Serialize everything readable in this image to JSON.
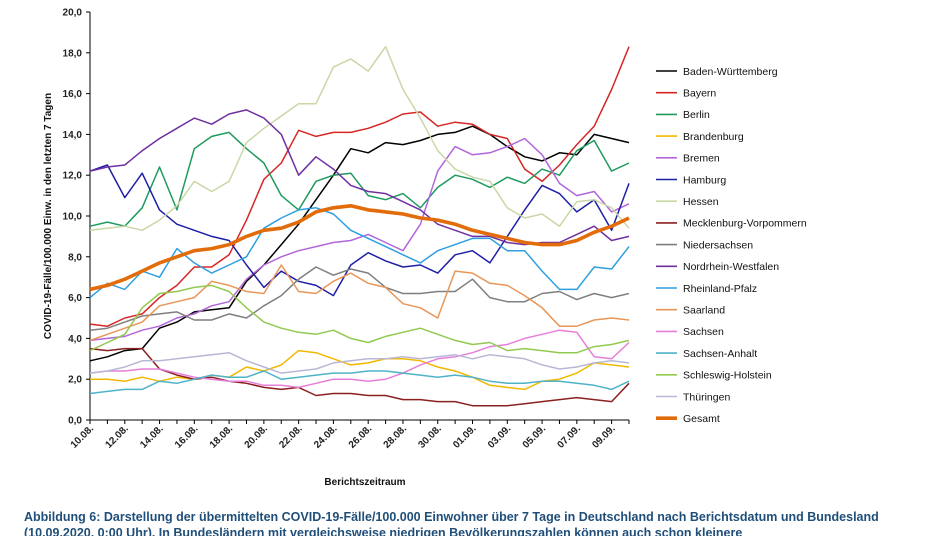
{
  "chart_data": {
    "type": "line",
    "title": "",
    "xlabel": "Berichtszeitraum",
    "ylabel": "COVID-19-Fälle/100.000 Einw. in den letzten 7 Tagen",
    "ylim": [
      0,
      20
    ],
    "y_ticks": [
      "0,0",
      "2,0",
      "4,0",
      "6,0",
      "8,0",
      "10,0",
      "12,0",
      "14,0",
      "16,0",
      "18,0",
      "20,0"
    ],
    "x_tick_labels": [
      "10.08.",
      "12.08.",
      "14.08.",
      "16.08.",
      "18.08.",
      "20.08.",
      "22.08.",
      "24.08.",
      "26.08.",
      "28.08.",
      "30.08.",
      "01.09.",
      "03.09.",
      "05.09.",
      "07.09.",
      "09.09."
    ],
    "x": [
      "10.08.",
      "11.08.",
      "12.08.",
      "13.08.",
      "14.08.",
      "15.08.",
      "16.08.",
      "17.08.",
      "18.08.",
      "19.08.",
      "20.08.",
      "21.08.",
      "22.08.",
      "23.08.",
      "24.08.",
      "25.08.",
      "26.08.",
      "27.08.",
      "28.08.",
      "29.08.",
      "30.08.",
      "31.08.",
      "01.09.",
      "02.09.",
      "03.09.",
      "04.09.",
      "05.09.",
      "06.09.",
      "07.09.",
      "08.09.",
      "09.09.",
      "10.09."
    ],
    "grid": false,
    "legend": "right",
    "series": [
      {
        "name": "Baden-Württemberg",
        "color": "#000000",
        "values": [
          2.9,
          3.1,
          3.4,
          3.5,
          4.5,
          4.8,
          5.3,
          5.4,
          5.5,
          6.8,
          7.6,
          8.6,
          9.6,
          10.8,
          12.0,
          13.3,
          13.1,
          13.6,
          13.5,
          13.7,
          14.0,
          14.1,
          14.4,
          14.0,
          13.4,
          12.9,
          12.7,
          13.1,
          13.0,
          14.0,
          13.8,
          13.6
        ]
      },
      {
        "name": "Bayern",
        "color": "#D72626",
        "values": [
          4.7,
          4.6,
          5.0,
          5.2,
          6.0,
          6.6,
          7.5,
          7.5,
          8.1,
          9.8,
          11.8,
          12.6,
          14.2,
          13.9,
          14.1,
          14.1,
          14.3,
          14.6,
          15.0,
          15.1,
          14.4,
          14.6,
          14.5,
          14.0,
          13.8,
          12.3,
          11.7,
          12.5,
          13.5,
          14.4,
          16.2,
          18.3
        ]
      },
      {
        "name": "Berlin",
        "color": "#1F9A5E",
        "values": [
          9.5,
          9.7,
          9.5,
          10.4,
          12.4,
          10.3,
          13.3,
          13.9,
          14.1,
          13.3,
          12.6,
          11.0,
          10.3,
          11.7,
          12.0,
          12.1,
          11.0,
          10.8,
          11.1,
          10.4,
          11.4,
          12.0,
          11.8,
          11.4,
          11.9,
          11.6,
          12.3,
          12.0,
          13.2,
          13.7,
          12.2,
          12.6
        ]
      },
      {
        "name": "Brandenburg",
        "color": "#F2B800",
        "values": [
          2.0,
          2.0,
          1.9,
          2.1,
          1.9,
          2.1,
          2.0,
          2.2,
          2.1,
          2.6,
          2.4,
          2.7,
          3.4,
          3.3,
          3.0,
          2.7,
          2.8,
          3.0,
          3.0,
          2.9,
          2.6,
          2.4,
          2.1,
          1.7,
          1.6,
          1.5,
          1.9,
          2.0,
          2.3,
          2.8,
          2.7,
          2.6
        ]
      },
      {
        "name": "Bremen",
        "color": "#B266D9",
        "values": [
          3.9,
          4.0,
          4.1,
          4.4,
          4.6,
          5.0,
          5.2,
          5.6,
          5.8,
          6.9,
          7.6,
          8.0,
          8.3,
          8.5,
          8.7,
          8.8,
          9.1,
          8.7,
          8.3,
          9.6,
          12.2,
          13.4,
          13.0,
          13.1,
          13.4,
          13.8,
          13.0,
          11.6,
          11.0,
          11.2,
          10.2,
          10.6
        ]
      },
      {
        "name": "Hamburg",
        "color": "#1F1FA6",
        "values": [
          12.2,
          12.5,
          10.9,
          12.1,
          10.3,
          9.6,
          9.3,
          9.0,
          8.8,
          7.6,
          6.5,
          7.3,
          6.8,
          6.6,
          6.1,
          7.6,
          8.2,
          7.8,
          7.5,
          7.6,
          7.2,
          8.1,
          8.3,
          7.7,
          9.0,
          10.3,
          11.5,
          11.1,
          10.2,
          10.8,
          9.3,
          11.6
        ]
      },
      {
        "name": "Hessen",
        "color": "#C9D8A6",
        "values": [
          9.3,
          9.4,
          9.5,
          9.3,
          9.8,
          10.5,
          11.7,
          11.2,
          11.7,
          13.6,
          14.3,
          14.9,
          15.5,
          15.5,
          17.3,
          17.7,
          17.1,
          18.3,
          16.2,
          14.8,
          13.2,
          12.3,
          11.9,
          11.7,
          10.4,
          9.9,
          10.1,
          9.5,
          10.7,
          10.8,
          10.4,
          9.4
        ]
      },
      {
        "name": "Mecklenburg-Vorpommern",
        "color": "#8B2020",
        "values": [
          3.5,
          3.4,
          3.5,
          3.5,
          2.5,
          2.2,
          2.0,
          2.1,
          1.9,
          1.8,
          1.6,
          1.5,
          1.6,
          1.2,
          1.3,
          1.3,
          1.2,
          1.2,
          1.0,
          1.0,
          0.9,
          0.9,
          0.7,
          0.7,
          0.7,
          0.8,
          0.9,
          1.0,
          1.1,
          1.0,
          0.9,
          1.8
        ]
      },
      {
        "name": "Niedersachsen",
        "color": "#7F7F7F",
        "values": [
          4.4,
          4.5,
          4.8,
          5.1,
          5.2,
          5.3,
          4.9,
          4.9,
          5.2,
          5.0,
          5.6,
          6.1,
          6.9,
          7.5,
          7.1,
          7.4,
          7.2,
          6.5,
          6.2,
          6.2,
          6.3,
          6.3,
          6.9,
          6.0,
          5.8,
          5.8,
          6.2,
          6.3,
          5.9,
          6.2,
          6.0,
          6.2
        ]
      },
      {
        "name": "Nordrhein-Westfalen",
        "color": "#7030A0",
        "values": [
          12.2,
          12.4,
          12.5,
          13.2,
          13.8,
          14.3,
          14.8,
          14.5,
          15.0,
          15.2,
          14.8,
          14.0,
          12.0,
          12.9,
          12.3,
          11.5,
          11.2,
          11.1,
          10.7,
          10.3,
          9.6,
          9.3,
          9.0,
          9.0,
          8.7,
          8.6,
          8.7,
          8.7,
          9.1,
          9.5,
          8.8,
          9.0
        ]
      },
      {
        "name": "Rheinland-Pfalz",
        "color": "#2E9FE0",
        "values": [
          6.0,
          6.7,
          6.4,
          7.3,
          7.0,
          8.4,
          7.7,
          7.2,
          7.6,
          8.0,
          9.4,
          9.9,
          10.3,
          10.4,
          10.1,
          9.3,
          8.9,
          8.5,
          8.1,
          7.7,
          8.3,
          8.6,
          8.9,
          8.9,
          8.3,
          8.3,
          7.3,
          6.4,
          6.4,
          7.5,
          7.4,
          8.5
        ]
      },
      {
        "name": "Saarland",
        "color": "#E8965A",
        "values": [
          3.9,
          4.2,
          4.5,
          4.8,
          5.6,
          5.8,
          6.0,
          6.8,
          6.6,
          6.3,
          6.2,
          7.6,
          6.3,
          6.2,
          6.8,
          7.2,
          6.7,
          6.5,
          5.7,
          5.5,
          5.0,
          7.3,
          7.2,
          6.7,
          6.6,
          6.1,
          5.5,
          4.6,
          4.6,
          4.9,
          5.0,
          4.9
        ]
      },
      {
        "name": "Sachsen",
        "color": "#E67FD9",
        "values": [
          2.3,
          2.4,
          2.4,
          2.5,
          2.5,
          2.3,
          2.1,
          2.0,
          1.9,
          1.9,
          1.7,
          1.7,
          1.6,
          1.8,
          2.0,
          2.0,
          1.9,
          2.0,
          2.3,
          2.7,
          3.0,
          3.1,
          3.3,
          3.6,
          3.7,
          4.0,
          4.2,
          4.4,
          4.3,
          3.1,
          3.0,
          3.8
        ]
      },
      {
        "name": "Sachsen-Anhalt",
        "color": "#4FB3C7",
        "values": [
          1.3,
          1.4,
          1.5,
          1.5,
          1.9,
          1.8,
          2.0,
          2.2,
          2.1,
          2.1,
          2.4,
          2.0,
          2.1,
          2.2,
          2.3,
          2.3,
          2.4,
          2.4,
          2.3,
          2.2,
          2.1,
          2.2,
          2.1,
          1.9,
          1.8,
          1.8,
          1.9,
          1.9,
          1.8,
          1.7,
          1.5,
          1.9
        ]
      },
      {
        "name": "Schleswig-Holstein",
        "color": "#92C94F",
        "values": [
          3.4,
          3.8,
          4.2,
          5.5,
          6.2,
          6.3,
          6.5,
          6.6,
          6.3,
          5.5,
          4.8,
          4.5,
          4.3,
          4.2,
          4.4,
          4.0,
          3.8,
          4.1,
          4.3,
          4.5,
          4.2,
          3.9,
          3.7,
          3.8,
          3.4,
          3.5,
          3.4,
          3.3,
          3.3,
          3.6,
          3.7,
          3.9
        ]
      },
      {
        "name": "Thüringen",
        "color": "#B8B8D6",
        "values": [
          2.3,
          2.4,
          2.6,
          2.9,
          2.9,
          3.0,
          3.1,
          3.2,
          3.3,
          2.9,
          2.6,
          2.3,
          2.4,
          2.5,
          2.8,
          2.9,
          3.0,
          3.0,
          3.1,
          3.0,
          3.1,
          3.2,
          3.0,
          3.2,
          3.1,
          3.0,
          2.7,
          2.5,
          2.6,
          2.8,
          2.9,
          2.8
        ]
      },
      {
        "name": "Gesamt",
        "color": "#E36C0A",
        "values": [
          6.4,
          6.6,
          6.9,
          7.3,
          7.7,
          8.0,
          8.3,
          8.4,
          8.6,
          9.0,
          9.3,
          9.4,
          9.7,
          10.2,
          10.4,
          10.5,
          10.3,
          10.2,
          10.1,
          9.9,
          9.8,
          9.6,
          9.3,
          9.1,
          8.9,
          8.7,
          8.6,
          8.6,
          8.8,
          9.2,
          9.5,
          9.9
        ]
      }
    ]
  },
  "caption": "Abbildung 6: Darstellung der übermittelten COVID-19-Fälle/100.000 Einwohner über 7 Tage in Deutschland nach Berichtsdatum und Bundesland (10.09.2020, 0:00 Uhr). In Bundesländern mit vergleichsweise niedrigen Bevölkerungszahlen können auch schon kleinere"
}
